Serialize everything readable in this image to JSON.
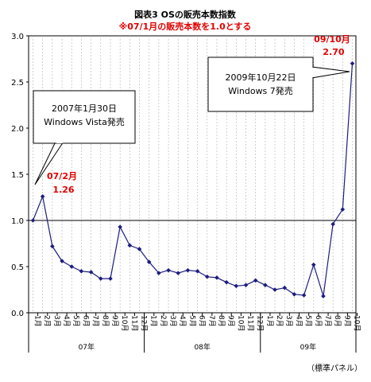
{
  "chart_data": {
    "type": "line",
    "title": "図表3 OSの販売本数指数",
    "subtitle": "※07/1月の販売本数を1.0とする",
    "ylim": [
      0,
      3.0
    ],
    "yticks": [
      "0.0",
      "0.5",
      "1.0",
      "1.5",
      "2.0",
      "2.5",
      "3.0"
    ],
    "reference_line": 1.0,
    "categories": [
      "1月",
      "2月",
      "3月",
      "4月",
      "5月",
      "6月",
      "7月",
      "8月",
      "9月",
      "10月",
      "11月",
      "12月",
      "1月",
      "2月",
      "3月",
      "4月",
      "5月",
      "6月",
      "7月",
      "8月",
      "9月",
      "10月",
      "11月",
      "12月",
      "1月",
      "2月",
      "3月",
      "4月",
      "5月",
      "6月",
      "7月",
      "8月",
      "9月",
      "10月"
    ],
    "years": [
      "07年",
      "08年",
      "09年"
    ],
    "values": [
      1.0,
      1.26,
      0.72,
      0.56,
      0.5,
      0.45,
      0.44,
      0.37,
      0.37,
      0.93,
      0.73,
      0.69,
      0.55,
      0.43,
      0.46,
      0.43,
      0.46,
      0.45,
      0.39,
      0.38,
      0.33,
      0.29,
      0.3,
      0.35,
      0.3,
      0.25,
      0.27,
      0.2,
      0.19,
      0.52,
      0.18,
      0.96,
      1.12,
      2.7
    ],
    "annotations": [
      {
        "line1": "07/2月",
        "line2": "1.26"
      },
      {
        "line1": "09/10月",
        "line2": "2.70"
      }
    ],
    "callouts": [
      {
        "line1": "2007年1月30日",
        "line2": "Windows Vista発売"
      },
      {
        "line1": "2009年10月22日",
        "line2": "Windows 7発売"
      }
    ],
    "source": "（標準パネル）",
    "colors": {
      "line": "#1c1c80",
      "annotation": "#e00000",
      "grid": "#b0b0b0"
    }
  }
}
